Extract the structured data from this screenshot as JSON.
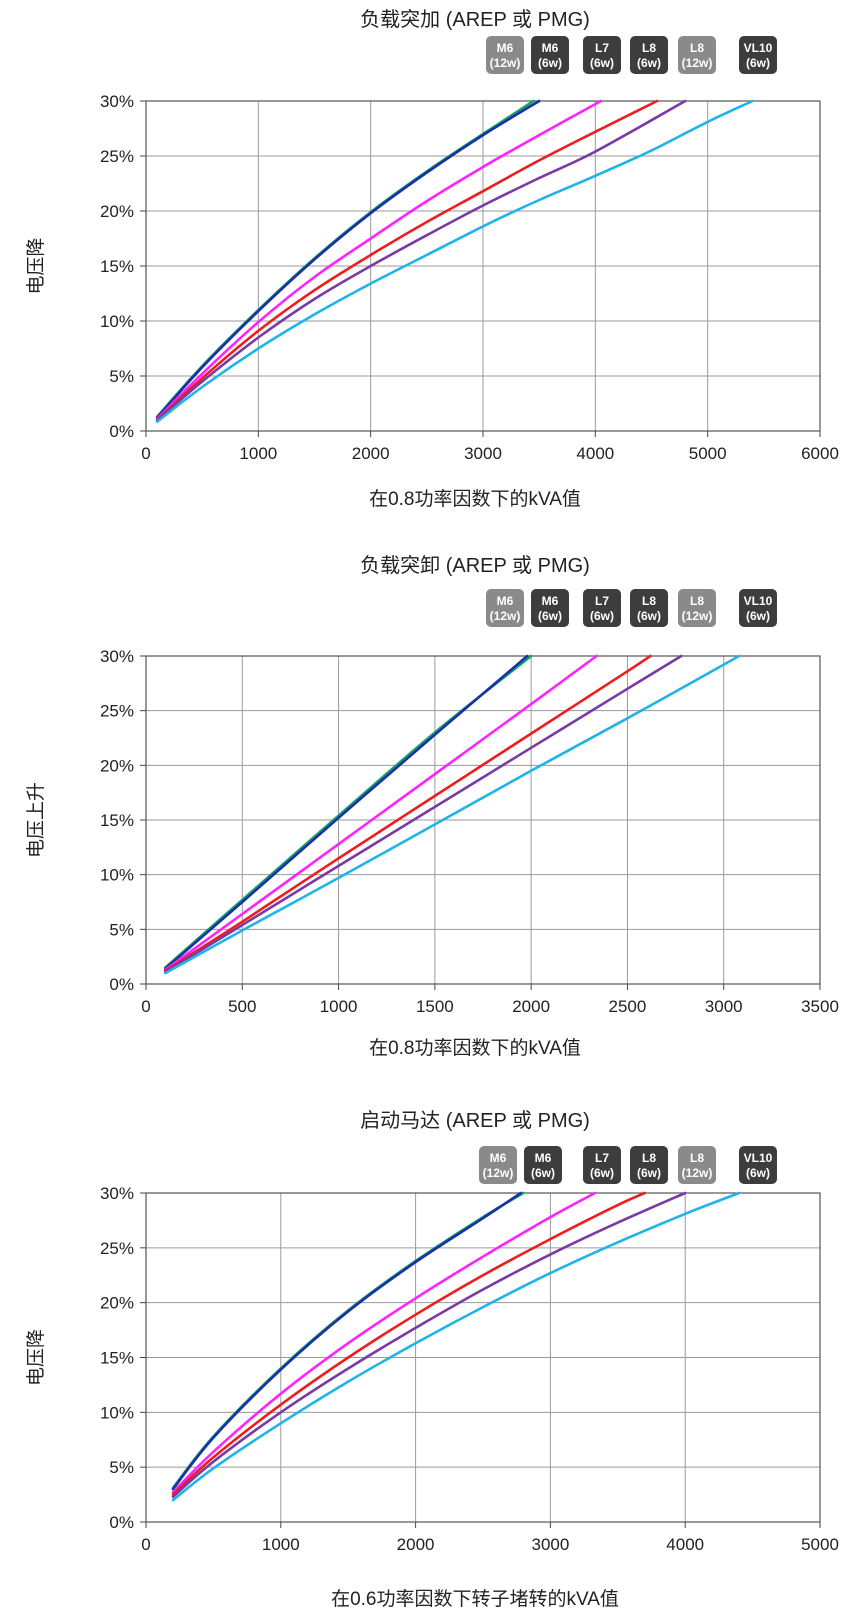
{
  "badge_colors": {
    "light": "#8a8a8a",
    "dark": "#3d3d3d"
  },
  "series_colors": {
    "M6 (12w)": "#0fa36b",
    "M6 (6w)": "#1b2fa8",
    "L7 (6w)": "#ff22ff",
    "L8 (6w)": "#ee1c1c",
    "L8 (12w)": "#7a3aa6",
    "VL10 (6w)": "#1fb3e8"
  },
  "chart_data": [
    {
      "type": "line",
      "title": "负载突加 (AREP 或 PMG)",
      "xlabel": "在0.8功率因数下的kVA值",
      "ylabel": "电压降",
      "xlim": [
        0,
        6000
      ],
      "ylim": [
        0,
        30
      ],
      "x_ticks": [
        "0",
        "1000",
        "2000",
        "3000",
        "4000",
        "5000",
        "6000"
      ],
      "y_ticks": [
        "0%",
        "5%",
        "10%",
        "15%",
        "20%",
        "25%",
        "30%"
      ],
      "grid": true,
      "badges": [
        {
          "l1": "M6",
          "l2": "(12w)",
          "tone": "light"
        },
        {
          "l1": "M6",
          "l2": "(6w)",
          "tone": "dark"
        },
        {
          "l1": "L7",
          "l2": "(6w)",
          "tone": "dark"
        },
        {
          "l1": "L8",
          "l2": "(6w)",
          "tone": "dark"
        },
        {
          "l1": "L8",
          "l2": "(12w)",
          "tone": "light"
        },
        {
          "l1": "VL10",
          "l2": "(6w)",
          "tone": "dark"
        }
      ],
      "series": [
        {
          "key": "M6 (12w)",
          "x": [
            100,
            500,
            1000,
            1500,
            2000,
            2500,
            3000,
            3450
          ],
          "y": [
            1.3,
            5.9,
            11.0,
            15.7,
            19.9,
            23.6,
            27.0,
            30
          ]
        },
        {
          "key": "M6 (6w)",
          "x": [
            100,
            500,
            1000,
            1500,
            2000,
            2500,
            3000,
            3500
          ],
          "y": [
            1.2,
            5.8,
            10.9,
            15.6,
            19.8,
            23.5,
            26.9,
            30
          ]
        },
        {
          "key": "L7 (6w)",
          "x": [
            100,
            500,
            1000,
            1500,
            2000,
            2500,
            3000,
            3500,
            4050
          ],
          "y": [
            1.1,
            5.2,
            9.9,
            14.0,
            17.5,
            20.9,
            24.0,
            26.9,
            30
          ]
        },
        {
          "key": "L8 (6w)",
          "x": [
            100,
            500,
            1000,
            1500,
            2000,
            2500,
            3000,
            3500,
            4000,
            4550
          ],
          "y": [
            1.0,
            4.8,
            9.1,
            12.8,
            16.0,
            19.0,
            21.8,
            24.6,
            27.2,
            30
          ]
        },
        {
          "key": "L8 (12w)",
          "x": [
            100,
            500,
            1000,
            1500,
            2000,
            2500,
            3000,
            3500,
            4000,
            4800
          ],
          "y": [
            0.95,
            4.5,
            8.5,
            12.0,
            15.0,
            17.8,
            20.5,
            23.0,
            25.4,
            30
          ]
        },
        {
          "key": "VL10 (6w)",
          "x": [
            100,
            500,
            1000,
            1500,
            2000,
            2500,
            3000,
            3500,
            4000,
            4500,
            5000,
            5400
          ],
          "y": [
            0.85,
            4.0,
            7.5,
            10.6,
            13.4,
            16.0,
            18.6,
            21.0,
            23.2,
            25.5,
            28.1,
            30
          ]
        }
      ]
    },
    {
      "type": "line",
      "title": "负载突卸 (AREP 或 PMG)",
      "xlabel": "在0.8功率因数下的kVA值",
      "ylabel": "电压上升",
      "xlim": [
        0,
        3500
      ],
      "ylim": [
        0,
        30
      ],
      "x_ticks": [
        "0",
        "500",
        "1000",
        "1500",
        "2000",
        "2500",
        "3000",
        "3500"
      ],
      "y_ticks": [
        "0%",
        "5%",
        "10%",
        "15%",
        "20%",
        "25%",
        "30%"
      ],
      "grid": true,
      "badges": [
        {
          "l1": "M6",
          "l2": "(12w)",
          "tone": "light"
        },
        {
          "l1": "M6",
          "l2": "(6w)",
          "tone": "dark"
        },
        {
          "l1": "L7",
          "l2": "(6w)",
          "tone": "dark"
        },
        {
          "l1": "L8",
          "l2": "(6w)",
          "tone": "dark"
        },
        {
          "l1": "L8",
          "l2": "(12w)",
          "tone": "light"
        },
        {
          "l1": "VL10",
          "l2": "(6w)",
          "tone": "dark"
        }
      ],
      "series": [
        {
          "key": "M6 (12w)",
          "x": [
            100,
            500,
            1000,
            1500,
            2000
          ],
          "y": [
            1.5,
            7.7,
            15.4,
            23.0,
            30
          ]
        },
        {
          "key": "M6 (6w)",
          "x": [
            100,
            500,
            1000,
            1500,
            1980
          ],
          "y": [
            1.4,
            7.5,
            15.2,
            22.8,
            30
          ]
        },
        {
          "key": "L7 (6w)",
          "x": [
            100,
            500,
            1000,
            1500,
            2000,
            2340
          ],
          "y": [
            1.3,
            6.4,
            12.8,
            19.2,
            25.6,
            30
          ]
        },
        {
          "key": "L8 (6w)",
          "x": [
            100,
            500,
            1000,
            1500,
            2000,
            2500,
            2620
          ],
          "y": [
            1.2,
            5.7,
            11.5,
            17.2,
            22.9,
            28.6,
            30
          ]
        },
        {
          "key": "L8 (12w)",
          "x": [
            100,
            500,
            1000,
            1500,
            2000,
            2500,
            2780
          ],
          "y": [
            1.1,
            5.4,
            10.8,
            16.2,
            21.6,
            27.0,
            30
          ]
        },
        {
          "key": "VL10 (6w)",
          "x": [
            100,
            500,
            1000,
            1500,
            2000,
            2500,
            3080
          ],
          "y": [
            1.0,
            4.9,
            9.7,
            14.6,
            19.5,
            24.3,
            30
          ]
        }
      ]
    },
    {
      "type": "line",
      "title": "启动马达 (AREP 或 PMG)",
      "xlabel": "在0.6功率因数下转子堵转的kVA值",
      "ylabel": "电压降",
      "xlim": [
        0,
        5000
      ],
      "ylim": [
        0,
        30
      ],
      "x_ticks": [
        "0",
        "1000",
        "2000",
        "3000",
        "4000",
        "5000"
      ],
      "y_ticks": [
        "0%",
        "5%",
        "10%",
        "15%",
        "20%",
        "25%",
        "30%"
      ],
      "grid": true,
      "badges": [
        {
          "l1": "M6",
          "l2": "(12w)",
          "tone": "light"
        },
        {
          "l1": "M6",
          "l2": "(6w)",
          "tone": "dark"
        },
        {
          "l1": "L7",
          "l2": "(6w)",
          "tone": "dark"
        },
        {
          "l1": "L8",
          "l2": "(6w)",
          "tone": "dark"
        },
        {
          "l1": "L8",
          "l2": "(12w)",
          "tone": "light"
        },
        {
          "l1": "VL10",
          "l2": "(6w)",
          "tone": "dark"
        }
      ],
      "series": [
        {
          "key": "M6 (12w)",
          "x": [
            200,
            500,
            1000,
            1500,
            2000,
            2500,
            2800
          ],
          "y": [
            3.1,
            7.8,
            14.0,
            19.3,
            23.8,
            27.8,
            30
          ]
        },
        {
          "key": "M6 (6w)",
          "x": [
            200,
            500,
            1000,
            1500,
            2000,
            2500,
            2780
          ],
          "y": [
            3.0,
            7.7,
            13.9,
            19.2,
            23.7,
            27.7,
            30
          ]
        },
        {
          "key": "L7 (6w)",
          "x": [
            200,
            500,
            1000,
            1500,
            2000,
            2500,
            3000,
            3330
          ],
          "y": [
            2.7,
            6.4,
            11.7,
            16.3,
            20.4,
            24.2,
            27.8,
            30
          ]
        },
        {
          "key": "L8 (6w)",
          "x": [
            200,
            500,
            1000,
            1500,
            2000,
            2500,
            3000,
            3500,
            3700
          ],
          "y": [
            2.5,
            5.9,
            10.7,
            15.0,
            18.9,
            22.5,
            25.8,
            28.9,
            30
          ]
        },
        {
          "key": "L8 (12w)",
          "x": [
            200,
            500,
            1000,
            1500,
            2000,
            2500,
            3000,
            3500,
            4000
          ],
          "y": [
            2.3,
            5.5,
            10.0,
            14.0,
            17.7,
            21.2,
            24.4,
            27.3,
            30
          ]
        },
        {
          "key": "VL10 (6w)",
          "x": [
            200,
            500,
            1000,
            1500,
            2000,
            2500,
            3000,
            3500,
            4000,
            4400
          ],
          "y": [
            2.0,
            4.9,
            9.0,
            12.8,
            16.3,
            19.6,
            22.7,
            25.5,
            28.1,
            30
          ]
        }
      ]
    }
  ]
}
